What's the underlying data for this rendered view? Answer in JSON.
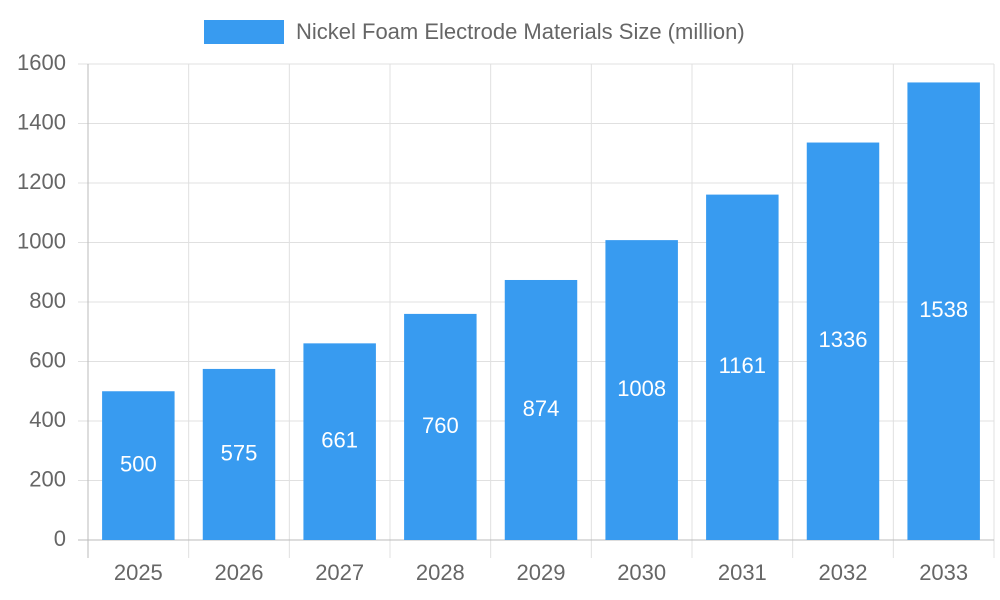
{
  "chart_data": {
    "type": "bar",
    "categories": [
      "2025",
      "2026",
      "2027",
      "2028",
      "2029",
      "2030",
      "2031",
      "2032",
      "2033"
    ],
    "series": [
      {
        "name": "Nickel Foam Electrode Materials Size (million)",
        "color": "#389bf0",
        "values": [
          500,
          575,
          661,
          760,
          874,
          1008,
          1161,
          1336,
          1538
        ]
      }
    ],
    "ylim": [
      0,
      1600
    ],
    "yticks": [
      0,
      200,
      400,
      600,
      800,
      1000,
      1200,
      1400,
      1600
    ],
    "grid": true,
    "legend": "top",
    "data_labels": true
  }
}
